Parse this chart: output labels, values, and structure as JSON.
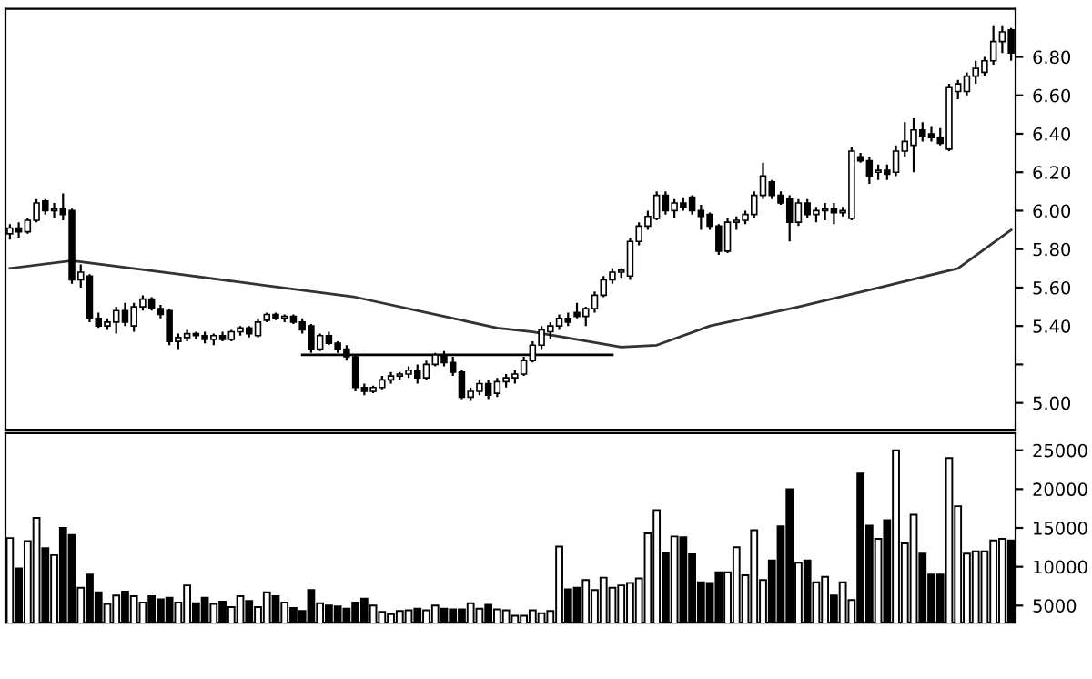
{
  "chart_data": [
    {
      "type": "candlestick",
      "categories": [
        null,
        null,
        null,
        null,
        null,
        null,
        null,
        null,
        null,
        null,
        null,
        null,
        null,
        null,
        null,
        null,
        null,
        null,
        null,
        null,
        null,
        null,
        null,
        null,
        null,
        null,
        null,
        null,
        null,
        null,
        null,
        null,
        null,
        null,
        null,
        null,
        null,
        null,
        null,
        null,
        null,
        null,
        null,
        null,
        null,
        null,
        null,
        null,
        null,
        null,
        null,
        null,
        null,
        null,
        null,
        null,
        null,
        null,
        null,
        null,
        null,
        null,
        null,
        null,
        null,
        null,
        null,
        null,
        null,
        null,
        null,
        null,
        null,
        null,
        null,
        null,
        null,
        null,
        null,
        null,
        null,
        null,
        null,
        null,
        null,
        null,
        null,
        null,
        null,
        null,
        null,
        null,
        null,
        null,
        null,
        null,
        null,
        null,
        null,
        null,
        null,
        null,
        null,
        null,
        null,
        null,
        null,
        null,
        null,
        null,
        null,
        null,
        null,
        null
      ],
      "ohlc": [
        [
          5.88,
          5.93,
          5.85,
          5.91
        ],
        [
          5.91,
          5.94,
          5.86,
          5.89
        ],
        [
          5.89,
          5.96,
          5.88,
          5.95
        ],
        [
          5.95,
          6.06,
          5.94,
          6.04
        ],
        [
          6.05,
          6.06,
          5.98,
          6.0
        ],
        [
          6.0,
          6.04,
          5.96,
          6.01
        ],
        [
          6.01,
          6.09,
          5.95,
          5.98
        ],
        [
          6.0,
          6.01,
          5.62,
          5.64
        ],
        [
          5.64,
          5.72,
          5.6,
          5.68
        ],
        [
          5.66,
          5.67,
          5.42,
          5.44
        ],
        [
          5.44,
          5.47,
          5.39,
          5.4
        ],
        [
          5.4,
          5.44,
          5.38,
          5.42
        ],
        [
          5.42,
          5.5,
          5.36,
          5.48
        ],
        [
          5.48,
          5.52,
          5.4,
          5.42
        ],
        [
          5.4,
          5.52,
          5.37,
          5.5
        ],
        [
          5.5,
          5.56,
          5.48,
          5.54
        ],
        [
          5.54,
          5.55,
          5.48,
          5.49
        ],
        [
          5.49,
          5.51,
          5.44,
          5.46
        ],
        [
          5.48,
          5.49,
          5.3,
          5.32
        ],
        [
          5.32,
          5.36,
          5.28,
          5.34
        ],
        [
          5.34,
          5.38,
          5.32,
          5.36
        ],
        [
          5.36,
          5.37,
          5.33,
          5.35
        ],
        [
          5.35,
          5.37,
          5.31,
          5.33
        ],
        [
          5.33,
          5.36,
          5.3,
          5.35
        ],
        [
          5.35,
          5.37,
          5.32,
          5.33
        ],
        [
          5.33,
          5.38,
          5.32,
          5.37
        ],
        [
          5.37,
          5.4,
          5.35,
          5.39
        ],
        [
          5.39,
          5.4,
          5.34,
          5.36
        ],
        [
          5.35,
          5.44,
          5.34,
          5.42
        ],
        [
          5.43,
          5.47,
          5.42,
          5.46
        ],
        [
          5.46,
          5.47,
          5.43,
          5.44
        ],
        [
          5.44,
          5.46,
          5.42,
          5.45
        ],
        [
          5.45,
          5.46,
          5.41,
          5.42
        ],
        [
          5.42,
          5.44,
          5.36,
          5.38
        ],
        [
          5.4,
          5.41,
          5.26,
          5.28
        ],
        [
          5.28,
          5.36,
          5.27,
          5.35
        ],
        [
          5.35,
          5.37,
          5.3,
          5.31
        ],
        [
          5.31,
          5.32,
          5.26,
          5.28
        ],
        [
          5.28,
          5.3,
          5.22,
          5.24
        ],
        [
          5.24,
          5.25,
          5.06,
          5.08
        ],
        [
          5.08,
          5.1,
          5.04,
          5.06
        ],
        [
          5.06,
          5.09,
          5.05,
          5.08
        ],
        [
          5.08,
          5.14,
          5.07,
          5.12
        ],
        [
          5.12,
          5.16,
          5.1,
          5.14
        ],
        [
          5.14,
          5.16,
          5.12,
          5.15
        ],
        [
          5.15,
          5.19,
          5.13,
          5.17
        ],
        [
          5.17,
          5.2,
          5.1,
          5.13
        ],
        [
          5.13,
          5.22,
          5.12,
          5.2
        ],
        [
          5.2,
          5.26,
          5.19,
          5.25
        ],
        [
          5.25,
          5.27,
          5.19,
          5.21
        ],
        [
          5.21,
          5.24,
          5.14,
          5.16
        ],
        [
          5.16,
          5.17,
          5.02,
          5.03
        ],
        [
          5.03,
          5.08,
          5.01,
          5.06
        ],
        [
          5.06,
          5.12,
          5.04,
          5.1
        ],
        [
          5.1,
          5.12,
          5.02,
          5.04
        ],
        [
          5.05,
          5.13,
          5.03,
          5.11
        ],
        [
          5.11,
          5.15,
          5.08,
          5.13
        ],
        [
          5.13,
          5.17,
          5.1,
          5.15
        ],
        [
          5.15,
          5.24,
          5.14,
          5.22
        ],
        [
          5.22,
          5.32,
          5.21,
          5.3
        ],
        [
          5.3,
          5.4,
          5.28,
          5.38
        ],
        [
          5.37,
          5.42,
          5.33,
          5.4
        ],
        [
          5.4,
          5.46,
          5.38,
          5.44
        ],
        [
          5.44,
          5.47,
          5.4,
          5.42
        ],
        [
          5.47,
          5.52,
          5.44,
          5.45
        ],
        [
          5.45,
          5.5,
          5.4,
          5.49
        ],
        [
          5.49,
          5.58,
          5.47,
          5.56
        ],
        [
          5.56,
          5.66,
          5.55,
          5.64
        ],
        [
          5.64,
          5.7,
          5.62,
          5.68
        ],
        [
          5.68,
          5.7,
          5.65,
          5.69
        ],
        [
          5.66,
          5.86,
          5.64,
          5.84
        ],
        [
          5.84,
          5.94,
          5.82,
          5.92
        ],
        [
          5.92,
          6.0,
          5.9,
          5.97
        ],
        [
          5.96,
          6.1,
          5.95,
          6.08
        ],
        [
          6.08,
          6.1,
          5.98,
          6.0
        ],
        [
          6.0,
          6.06,
          5.96,
          6.04
        ],
        [
          6.04,
          6.07,
          6.0,
          6.02
        ],
        [
          6.07,
          6.08,
          5.98,
          6.0
        ],
        [
          6.0,
          6.03,
          5.9,
          5.97
        ],
        [
          5.98,
          5.99,
          5.9,
          5.92
        ],
        [
          5.92,
          5.93,
          5.77,
          5.79
        ],
        [
          5.79,
          5.96,
          5.78,
          5.94
        ],
        [
          5.94,
          5.97,
          5.9,
          5.95
        ],
        [
          5.95,
          6.0,
          5.93,
          5.98
        ],
        [
          5.98,
          6.1,
          5.96,
          6.08
        ],
        [
          6.08,
          6.25,
          6.06,
          6.18
        ],
        [
          6.15,
          6.16,
          6.06,
          6.08
        ],
        [
          6.08,
          6.1,
          6.03,
          6.04
        ],
        [
          6.06,
          6.08,
          5.84,
          5.94
        ],
        [
          5.94,
          6.06,
          5.92,
          6.04
        ],
        [
          6.04,
          6.06,
          5.96,
          5.98
        ],
        [
          5.98,
          6.02,
          5.94,
          6.0
        ],
        [
          6.0,
          6.04,
          5.95,
          6.01
        ],
        [
          6.01,
          6.04,
          5.93,
          5.99
        ],
        [
          5.99,
          6.02,
          5.97,
          6.0
        ],
        [
          5.96,
          6.33,
          5.95,
          6.31
        ],
        [
          6.28,
          6.3,
          6.25,
          6.26
        ],
        [
          6.26,
          6.28,
          6.14,
          6.18
        ],
        [
          6.2,
          6.24,
          6.16,
          6.21
        ],
        [
          6.21,
          6.24,
          6.16,
          6.19
        ],
        [
          6.2,
          6.34,
          6.18,
          6.31
        ],
        [
          6.31,
          6.46,
          6.28,
          6.36
        ],
        [
          6.34,
          6.48,
          6.2,
          6.42
        ],
        [
          6.42,
          6.46,
          6.36,
          6.39
        ],
        [
          6.4,
          6.44,
          6.36,
          6.38
        ],
        [
          6.38,
          6.43,
          6.34,
          6.35
        ],
        [
          6.32,
          6.66,
          6.31,
          6.64
        ],
        [
          6.62,
          6.68,
          6.58,
          6.66
        ],
        [
          6.62,
          6.72,
          6.6,
          6.7
        ],
        [
          6.7,
          6.78,
          6.66,
          6.74
        ],
        [
          6.72,
          6.8,
          6.7,
          6.78
        ],
        [
          6.78,
          6.96,
          6.76,
          6.88
        ],
        [
          6.88,
          6.96,
          6.82,
          6.93
        ],
        [
          6.94,
          6.95,
          6.78,
          6.82
        ]
      ],
      "series": [
        {
          "type": "line",
          "color": "#333333",
          "values": [
            5.7,
            null,
            null,
            null,
            null,
            null,
            null,
            5.74,
            null,
            null,
            null,
            null,
            null,
            null,
            null,
            null,
            null,
            null,
            null,
            5.67,
            null,
            null,
            null,
            null,
            null,
            null,
            null,
            null,
            null,
            5.61,
            null,
            null,
            null,
            null,
            null,
            null,
            null,
            null,
            null,
            5.55,
            null,
            null,
            null,
            null,
            null,
            null,
            null,
            null,
            null,
            5.45,
            null,
            null,
            null,
            null,
            null,
            5.39,
            null,
            null,
            null,
            5.37,
            null,
            null,
            null,
            null,
            null,
            null,
            null,
            null,
            null,
            5.29,
            null,
            null,
            null,
            5.3,
            null,
            null,
            null,
            null,
            null,
            5.4,
            null,
            null,
            null,
            null,
            null,
            null,
            null,
            null,
            null,
            5.5,
            null,
            null,
            null,
            null,
            null,
            null,
            null,
            null,
            null,
            5.61,
            null,
            null,
            null,
            null,
            null,
            null,
            null,
            5.7,
            null,
            null,
            null,
            null,
            null,
            5.9
          ]
        },
        {
          "type": "line",
          "color": "#000000",
          "values": [
            null,
            null,
            null,
            null,
            null,
            null,
            null,
            null,
            null,
            null,
            null,
            null,
            null,
            null,
            null,
            null,
            null,
            null,
            null,
            null,
            null,
            null,
            null,
            null,
            null,
            null,
            null,
            null,
            null,
            null,
            null,
            null,
            null,
            5.25,
            null,
            null,
            null,
            null,
            null,
            null,
            null,
            null,
            null,
            null,
            null,
            null,
            null,
            null,
            null,
            null,
            null,
            null,
            null,
            null,
            null,
            null,
            null,
            null,
            null,
            null,
            null,
            null,
            null,
            null,
            null,
            null,
            null,
            null,
            5.25,
            null,
            null,
            null,
            null,
            null,
            null,
            null,
            null,
            null,
            null,
            null,
            null,
            null,
            null,
            null,
            null,
            null,
            null,
            null,
            null,
            null,
            null,
            null,
            null,
            null,
            null,
            null,
            null,
            null,
            null,
            null,
            null,
            null,
            null,
            null,
            null,
            null,
            null,
            null,
            null,
            null,
            null,
            null,
            null,
            null
          ]
        }
      ],
      "ylim": [
        4.86,
        7.05
      ],
      "yticks": [
        {
          "value": 5.0,
          "label": "5.00"
        },
        {
          "value": 5.2,
          "label": null
        },
        {
          "value": 5.4,
          "label": "5.40"
        },
        {
          "value": 5.6,
          "label": "5.60"
        },
        {
          "value": 5.8,
          "label": "5.80"
        },
        {
          "value": 6.0,
          "label": "6.00"
        },
        {
          "value": 6.2,
          "label": "6.20"
        },
        {
          "value": 6.4,
          "label": "6.40"
        },
        {
          "value": 6.6,
          "label": "6.60"
        },
        {
          "value": 6.8,
          "label": "6.80"
        }
      ],
      "tick_labels": "y",
      "grid": false,
      "legend": false
    },
    {
      "type": "bar",
      "categories": [
        null,
        null,
        null,
        null,
        null,
        null,
        null,
        null,
        null,
        null,
        null,
        null,
        null,
        null,
        null,
        null,
        null,
        null,
        null,
        null,
        null,
        null,
        null,
        null,
        null,
        null,
        null,
        null,
        null,
        null,
        null,
        null,
        null,
        null,
        null,
        null,
        null,
        null,
        null,
        null,
        null,
        null,
        null,
        null,
        null,
        null,
        null,
        null,
        null,
        null,
        null,
        null,
        null,
        null,
        null,
        null,
        null,
        null,
        null,
        null,
        null,
        null,
        null,
        null,
        null,
        null,
        null,
        null,
        null,
        null,
        null,
        null,
        null,
        null,
        null,
        null,
        null,
        null,
        null,
        null,
        null,
        null,
        null,
        null,
        null,
        null,
        null,
        null,
        null,
        null,
        null,
        null,
        null,
        null,
        null,
        null,
        null,
        null,
        null,
        null,
        null,
        null,
        null,
        null,
        null,
        null,
        null,
        null,
        null,
        null,
        null,
        null,
        null,
        null
      ],
      "values": [
        13700,
        9800,
        13300,
        16300,
        12400,
        11500,
        15000,
        14100,
        7300,
        9000,
        6700,
        5200,
        6300,
        6800,
        6200,
        5400,
        6200,
        5800,
        6000,
        5400,
        7600,
        5300,
        6000,
        5200,
        5500,
        4800,
        6200,
        5600,
        4800,
        6700,
        6200,
        5400,
        4700,
        4300,
        7000,
        5300,
        5000,
        4900,
        4600,
        5400,
        5900,
        5000,
        4200,
        3900,
        4300,
        4400,
        4600,
        4400,
        5000,
        4600,
        4500,
        4500,
        5300,
        4600,
        5100,
        4500,
        4400,
        3700,
        3700,
        4400,
        4000,
        4300,
        12600,
        7100,
        7300,
        8300,
        7000,
        8600,
        7300,
        7600,
        7900,
        8500,
        14300,
        17300,
        11800,
        13900,
        13800,
        11600,
        8000,
        7900,
        9300,
        9300,
        12500,
        8900,
        14700,
        8300,
        10800,
        15200,
        20000,
        10500,
        10800,
        8000,
        8700,
        6300,
        8000,
        5700,
        22000,
        15300,
        13600,
        16000,
        25000,
        13000,
        16700,
        11700,
        9000,
        9000,
        24000,
        17800,
        11700,
        12000,
        12000,
        13400,
        13600,
        13400
      ],
      "colors": [
        "#ffffff",
        "#000000",
        "#ffffff",
        "#ffffff",
        "#000000",
        "#ffffff",
        "#000000",
        "#000000",
        "#ffffff",
        "#000000",
        "#000000",
        "#ffffff",
        "#ffffff",
        "#000000",
        "#ffffff",
        "#ffffff",
        "#000000",
        "#000000",
        "#000000",
        "#ffffff",
        "#ffffff",
        "#000000",
        "#000000",
        "#ffffff",
        "#000000",
        "#ffffff",
        "#ffffff",
        "#000000",
        "#ffffff",
        "#ffffff",
        "#000000",
        "#ffffff",
        "#000000",
        "#000000",
        "#000000",
        "#ffffff",
        "#000000",
        "#000000",
        "#000000",
        "#000000",
        "#000000",
        "#ffffff",
        "#ffffff",
        "#ffffff",
        "#ffffff",
        "#ffffff",
        "#000000",
        "#ffffff",
        "#ffffff",
        "#000000",
        "#000000",
        "#000000",
        "#ffffff",
        "#ffffff",
        "#000000",
        "#ffffff",
        "#ffffff",
        "#ffffff",
        "#ffffff",
        "#ffffff",
        "#ffffff",
        "#ffffff",
        "#ffffff",
        "#000000",
        "#000000",
        "#ffffff",
        "#ffffff",
        "#ffffff",
        "#ffffff",
        "#ffffff",
        "#ffffff",
        "#ffffff",
        "#ffffff",
        "#ffffff",
        "#000000",
        "#ffffff",
        "#000000",
        "#000000",
        "#000000",
        "#000000",
        "#000000",
        "#ffffff",
        "#ffffff",
        "#ffffff",
        "#ffffff",
        "#ffffff",
        "#000000",
        "#000000",
        "#000000",
        "#ffffff",
        "#000000",
        "#ffffff",
        "#ffffff",
        "#000000",
        "#ffffff",
        "#ffffff",
        "#000000",
        "#000000",
        "#ffffff",
        "#000000",
        "#ffffff",
        "#ffffff",
        "#ffffff",
        "#000000",
        "#000000",
        "#000000",
        "#ffffff",
        "#ffffff",
        "#ffffff",
        "#ffffff",
        "#ffffff",
        "#ffffff",
        "#ffffff",
        "#000000"
      ],
      "ylim": [
        2800,
        27200
      ],
      "yticks": [
        5000,
        10000,
        15000,
        20000,
        25000
      ],
      "tick_labels": "y",
      "grid": false,
      "legend": false
    }
  ]
}
